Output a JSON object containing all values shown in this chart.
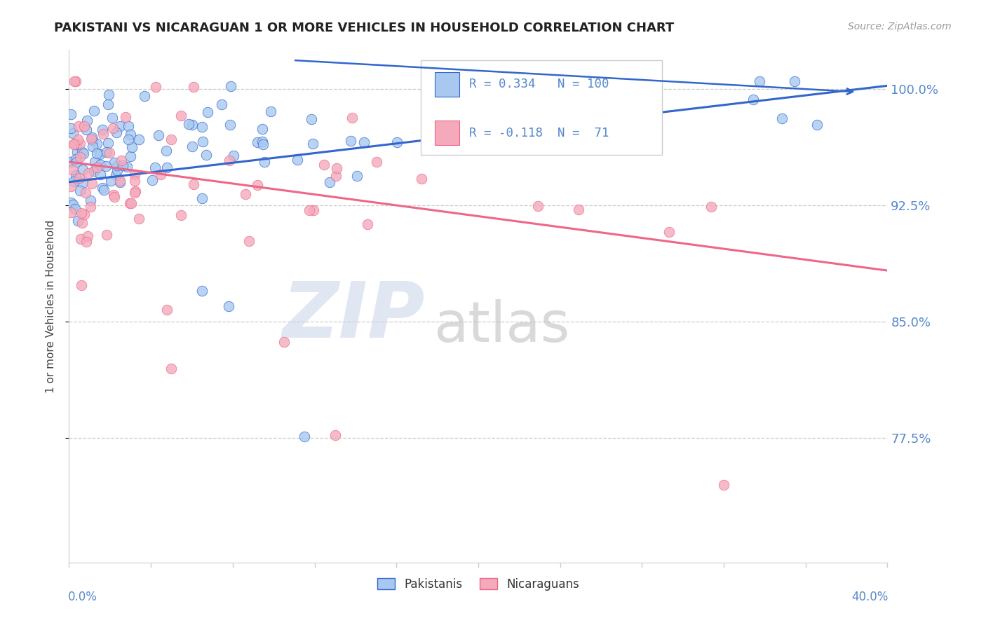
{
  "title": "PAKISTANI VS NICARAGUAN 1 OR MORE VEHICLES IN HOUSEHOLD CORRELATION CHART",
  "source": "Source: ZipAtlas.com",
  "ylabel": "1 or more Vehicles in Household",
  "xlim": [
    0.0,
    0.4
  ],
  "ylim": [
    0.695,
    1.025
  ],
  "ytick_vals": [
    0.775,
    0.85,
    0.925,
    1.0
  ],
  "ytick_labels": [
    "77.5%",
    "85.0%",
    "92.5%",
    "100.0%"
  ],
  "r_pakistani": 0.334,
  "n_pakistani": 100,
  "r_nicaraguan": -0.118,
  "n_nicaraguan": 71,
  "color_pakistani": "#A8C8F0",
  "color_nicaraguan": "#F4AABB",
  "color_trend_pakistani": "#3366CC",
  "color_trend_nicaraguan": "#EE6688",
  "grid_color": "#CCCCCC",
  "axis_label_color": "#5588CC",
  "title_color": "#222222",
  "source_color": "#999999",
  "watermark_zip_color": "#C8D4E8",
  "watermark_atlas_color": "#BBBBBB"
}
